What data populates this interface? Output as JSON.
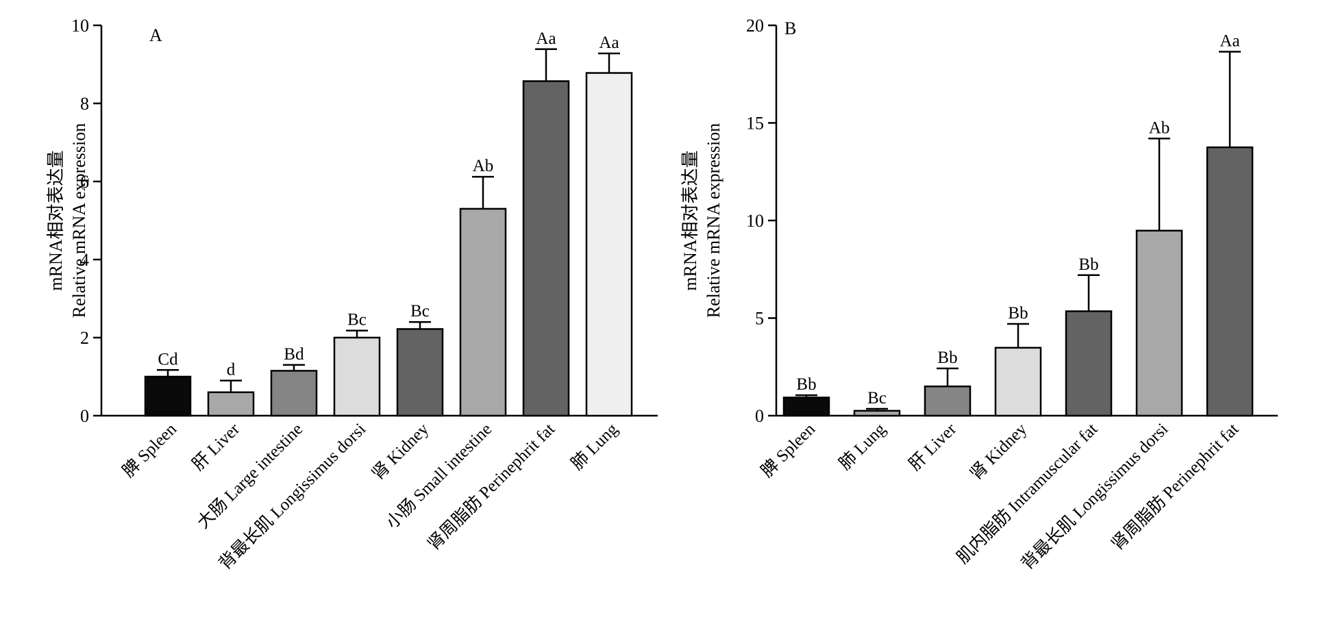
{
  "chart_data": [
    {
      "type": "bar",
      "panel_label": "A",
      "ylabel_line1": "mRNA相对表达量",
      "ylabel_line2": "Relative mRNA expression",
      "ylim": [
        0,
        10
      ],
      "yticks": [
        0,
        2,
        4,
        6,
        8,
        10
      ],
      "categories": [
        "脾 Spleen",
        "肝 Liver",
        "大肠 Large intestine",
        "背最长肌 Longissimus dorsi",
        "肾 Kidney",
        "小肠 Small intestine",
        "肾周脂肪 Perinephrit fat",
        "肺 Lung"
      ],
      "values": [
        1.0,
        0.6,
        1.15,
        2.0,
        2.22,
        5.3,
        8.57,
        8.78
      ],
      "errors": [
        0.17,
        0.3,
        0.15,
        0.18,
        0.18,
        0.82,
        0.82,
        0.5
      ],
      "significance": [
        "Cd",
        "d",
        "Bd",
        "Bc",
        "Bc",
        "Ab",
        "Aa",
        "Aa"
      ],
      "colors": [
        "#0a0a0a",
        "#a8a8a8",
        "#858585",
        "#dcdcdc",
        "#636363",
        "#a8a8a8",
        "#636363",
        "#efefef"
      ]
    },
    {
      "type": "bar",
      "panel_label": "B",
      "ylabel_line1": "mRNA相对表达量",
      "ylabel_line2": "Relative mRNA expression",
      "ylim": [
        0,
        20
      ],
      "yticks": [
        0,
        5,
        10,
        15,
        20
      ],
      "categories": [
        "脾 Spleen",
        "肺 Lung",
        "肝 Liver",
        "肾 Kidney",
        "肌内脂肪 Intramuscular fat",
        "背最长肌 Longissimus dorsi",
        "肾周脂肪 Perinephrit fat"
      ],
      "values": [
        0.93,
        0.25,
        1.5,
        3.48,
        5.35,
        9.48,
        13.75
      ],
      "errors": [
        0.12,
        0.1,
        0.92,
        1.22,
        1.85,
        4.72,
        4.9
      ],
      "significance": [
        "Bb",
        "Bc",
        "Bb",
        "Bb",
        "Bb",
        "Ab",
        "Aa"
      ],
      "colors": [
        "#0a0a0a",
        "#a8a8a8",
        "#858585",
        "#dcdcdc",
        "#636363",
        "#a8a8a8",
        "#636363"
      ]
    }
  ]
}
